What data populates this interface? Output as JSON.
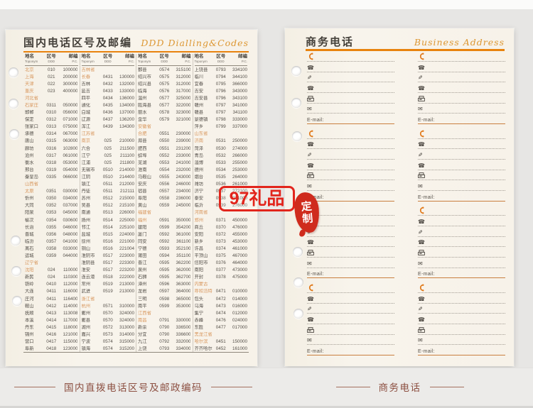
{
  "left_page": {
    "title": "国内电话区号及邮编",
    "title_en": "DDD Dialling&Codes",
    "header": {
      "name_cn": "地名",
      "name_en": "Toponym",
      "code_cn": "区号",
      "code_en": "DDD",
      "zip_cn": "邮编",
      "zip_en": "P.C."
    },
    "columns": [
      [
        [
          "北京",
          "010",
          "100000",
          1
        ],
        [
          "上海",
          "021",
          "200000",
          1
        ],
        [
          "天津",
          "022",
          "300000",
          1
        ],
        [
          "重庆",
          "023",
          "400000",
          1
        ],
        [
          "河北省",
          "",
          "",
          1
        ],
        [
          "石家庄",
          "0311",
          "050000",
          1
        ],
        [
          "邯郸",
          "0310",
          "056000",
          0
        ],
        [
          "保定",
          "0312",
          "071000",
          0
        ],
        [
          "张家口",
          "0313",
          "075000",
          0
        ],
        [
          "承德",
          "0314",
          "067000",
          0
        ],
        [
          "唐山",
          "0315",
          "063000",
          0
        ],
        [
          "廊坊",
          "0316",
          "102800",
          0
        ],
        [
          "沧州",
          "0317",
          "061000",
          0
        ],
        [
          "衡水",
          "0318",
          "053000",
          0
        ],
        [
          "邢台",
          "0319",
          "054000",
          0
        ],
        [
          "秦皇岛",
          "0335",
          "066000",
          0
        ],
        [
          "山西省",
          "",
          "",
          1
        ],
        [
          "太原",
          "0351",
          "030000",
          1
        ],
        [
          "忻州",
          "0350",
          "034000",
          0
        ],
        [
          "大同",
          "0352",
          "037000",
          0
        ],
        [
          "阳泉",
          "0353",
          "045000",
          0
        ],
        [
          "榆次",
          "0354",
          "030600",
          0
        ],
        [
          "长治",
          "0355",
          "046000",
          0
        ],
        [
          "晋城",
          "0356",
          "048000",
          0
        ],
        [
          "临汾",
          "0357",
          "041000",
          0
        ],
        [
          "离石",
          "0358",
          "033000",
          0
        ],
        [
          "运城",
          "0359",
          "044000",
          0
        ],
        [
          "辽宁省",
          "",
          "",
          1
        ],
        [
          "沈阳",
          "024",
          "110000",
          1
        ],
        [
          "新民",
          "024",
          "110300",
          0
        ],
        [
          "铁岭",
          "0410",
          "112000",
          0
        ],
        [
          "大连",
          "0411",
          "116000",
          0
        ],
        [
          "庄河",
          "0411",
          "116400",
          0
        ],
        [
          "鞍山",
          "0412",
          "114000",
          0
        ],
        [
          "抚顺",
          "0413",
          "113008",
          0
        ],
        [
          "本溪",
          "0414",
          "117000",
          0
        ],
        [
          "丹东",
          "0415",
          "118000",
          0
        ],
        [
          "锦州",
          "0416",
          "121000",
          0
        ],
        [
          "营口",
          "0417",
          "115000",
          0
        ],
        [
          "阜新",
          "0418",
          "123000",
          0
        ]
      ],
      [
        [
          "吉林省",
          "",
          "",
          1
        ],
        [
          "长春",
          "0431",
          "130000",
          1
        ],
        [
          "吉林",
          "0432",
          "132000",
          0
        ],
        [
          "延吉",
          "0433",
          "133000",
          0
        ],
        [
          "四平",
          "0434",
          "136000",
          0
        ],
        [
          "通化",
          "0435",
          "134000",
          0
        ],
        [
          "白城",
          "0436",
          "137000",
          0
        ],
        [
          "辽源",
          "0437",
          "136200",
          0
        ],
        [
          "浑江",
          "0439",
          "134300",
          0
        ],
        [
          "江苏省",
          "",
          "",
          1
        ],
        [
          "南京",
          "025",
          "210000",
          1
        ],
        [
          "六合",
          "025",
          "211500",
          0
        ],
        [
          "江宁",
          "025",
          "211100",
          0
        ],
        [
          "江浦",
          "025",
          "211800",
          0
        ],
        [
          "无锡市",
          "0510",
          "214000",
          0
        ],
        [
          "江阴",
          "0510",
          "214400",
          0
        ],
        [
          "镇江",
          "0511",
          "212000",
          0
        ],
        [
          "丹徒",
          "0511",
          "212111",
          0
        ],
        [
          "苏州",
          "0512",
          "215000",
          0
        ],
        [
          "吴县",
          "0512",
          "215100",
          0
        ],
        [
          "南通",
          "0513",
          "226000",
          0
        ],
        [
          "扬州",
          "0514",
          "225000",
          0
        ],
        [
          "邗江",
          "0514",
          "225100",
          0
        ],
        [
          "盐城",
          "0515",
          "224000",
          0
        ],
        [
          "徐州",
          "0516",
          "221000",
          0
        ],
        [
          "铜山",
          "0516",
          "221004",
          0
        ],
        [
          "淮阴市",
          "0517",
          "223000",
          0
        ],
        [
          "淮阴县",
          "0517",
          "223300",
          0
        ],
        [
          "淮安",
          "0517",
          "223200",
          0
        ],
        [
          "连云港",
          "0518",
          "222000",
          0
        ],
        [
          "常州",
          "0519",
          "213000",
          0
        ],
        [
          "武进",
          "0519",
          "213000",
          0
        ],
        [
          "浙江省",
          "",
          "",
          1
        ],
        [
          "杭州",
          "0571",
          "310000",
          1
        ],
        [
          "衢州",
          "0570",
          "324000",
          0
        ],
        [
          "衢县",
          "0570",
          "324000",
          0
        ],
        [
          "湖州",
          "0572",
          "313000",
          0
        ],
        [
          "嘉兴",
          "0573",
          "314000",
          0
        ],
        [
          "宁波",
          "0574",
          "315000",
          0
        ],
        [
          "镇海",
          "0574",
          "315200",
          0
        ]
      ],
      [
        [
          "鄞县",
          "0574",
          "315100",
          0
        ],
        [
          "绍兴市",
          "0575",
          "312000",
          0
        ],
        [
          "绍兴县",
          "0575",
          "312000",
          0
        ],
        [
          "临海",
          "0576",
          "317000",
          0
        ],
        [
          "温州",
          "0577",
          "325000",
          0
        ],
        [
          "瓯海县",
          "0577",
          "322000",
          0
        ],
        [
          "丽水",
          "0578",
          "323000",
          0
        ],
        [
          "金华",
          "0579",
          "321000",
          0
        ],
        [
          "安徽省",
          "",
          "",
          1
        ],
        [
          "合肥",
          "0551",
          "230000",
          1
        ],
        [
          "滁县",
          "0550",
          "239000",
          0
        ],
        [
          "肥西",
          "0551",
          "231200",
          0
        ],
        [
          "蚌埠",
          "0552",
          "233000",
          0
        ],
        [
          "芜湖",
          "0553",
          "241000",
          0
        ],
        [
          "淮南",
          "0554",
          "232000",
          0
        ],
        [
          "马鞍山",
          "0555",
          "243000",
          0
        ],
        [
          "安庆",
          "0556",
          "246000",
          0
        ],
        [
          "宿县",
          "0557",
          "234000",
          0
        ],
        [
          "阜阳",
          "0558",
          "236000",
          0
        ],
        [
          "黄山",
          "0559",
          "245000",
          0
        ],
        [
          "福建省",
          "",
          "",
          1
        ],
        [
          "福州",
          "0591",
          "350000",
          1
        ],
        [
          "建阳",
          "0599",
          "354200",
          0
        ],
        [
          "厦门",
          "0592",
          "361000",
          0
        ],
        [
          "同安",
          "0592",
          "361100",
          0
        ],
        [
          "宁德",
          "0593",
          "352100",
          0
        ],
        [
          "莆田",
          "0594",
          "351100",
          0
        ],
        [
          "晋江",
          "0595",
          "362200",
          0
        ],
        [
          "泉州",
          "0595",
          "362000",
          0
        ],
        [
          "石狮",
          "0595",
          "362700",
          0
        ],
        [
          "漳州",
          "0596",
          "363000",
          0
        ],
        [
          "龙岩",
          "0597",
          "364000",
          0
        ],
        [
          "三明",
          "0598",
          "365000",
          0
        ],
        [
          "南平",
          "0599",
          "353000",
          0
        ],
        [
          "江西省",
          "",
          "",
          1
        ],
        [
          "南昌",
          "0791",
          "330000",
          1
        ],
        [
          "新余",
          "0790",
          "336500",
          0
        ],
        [
          "分宜",
          "0790",
          "336600",
          0
        ],
        [
          "九江",
          "0792",
          "332000",
          0
        ],
        [
          "上饶",
          "0793",
          "334000",
          0
        ]
      ],
      [
        [
          "上饶县",
          "0793",
          "334100",
          0
        ],
        [
          "临川",
          "0794",
          "344100",
          0
        ],
        [
          "宜春",
          "0795",
          "366000",
          0
        ],
        [
          "吉安",
          "0796",
          "343000",
          0
        ],
        [
          "吉安县",
          "0796",
          "343100",
          0
        ],
        [
          "赣州",
          "0797",
          "341000",
          0
        ],
        [
          "赣县",
          "0797",
          "341100",
          0
        ],
        [
          "景德镇",
          "0798",
          "333000",
          0
        ],
        [
          "萍乡",
          "0799",
          "337000",
          0
        ],
        [
          "山东省",
          "",
          "",
          1
        ],
        [
          "济南",
          "0531",
          "250000",
          1
        ],
        [
          "菏泽",
          "0530",
          "274000",
          0
        ],
        [
          "青岛",
          "0532",
          "266000",
          0
        ],
        [
          "淄博",
          "0533",
          "255000",
          0
        ],
        [
          "德州",
          "0534",
          "253000",
          0
        ],
        [
          "烟台",
          "0535",
          "264000",
          0
        ],
        [
          "潍坊",
          "0536",
          "261000",
          0
        ],
        [
          "济宁",
          "0537",
          "272100",
          0
        ],
        [
          "泰安",
          "0538",
          "271000",
          0
        ],
        [
          "临沂",
          "0539",
          "276000",
          0
        ],
        [
          "河南省",
          "",
          "",
          1
        ],
        [
          "郑州",
          "0371",
          "450000",
          1
        ],
        [
          "商丘",
          "0370",
          "476000",
          0
        ],
        [
          "安阳",
          "0372",
          "455000",
          0
        ],
        [
          "新乡",
          "0373",
          "453000",
          0
        ],
        [
          "许昌",
          "0374",
          "461000",
          0
        ],
        [
          "平顶山",
          "0375",
          "467000",
          0
        ],
        [
          "信阳市",
          "0376",
          "464000",
          0
        ],
        [
          "南阳",
          "0377",
          "473000",
          0
        ],
        [
          "开封",
          "0378",
          "475000",
          0
        ],
        [
          "内蒙古",
          "",
          "",
          1
        ],
        [
          "呼和浩特",
          "0471",
          "010000",
          1
        ],
        [
          "包头",
          "0472",
          "014000",
          0
        ],
        [
          "乌海",
          "0473",
          "016000",
          0
        ],
        [
          "集宁",
          "0474",
          "012000",
          0
        ],
        [
          "赤峰",
          "0476",
          "024000",
          0
        ],
        [
          "东胜",
          "0477",
          "017000",
          0
        ],
        [
          "黑龙江省",
          "",
          "",
          1
        ],
        [
          "哈尔滨",
          "0451",
          "150000",
          1
        ],
        [
          "齐齐哈尔",
          "0452",
          "161000",
          0
        ]
      ]
    ]
  },
  "right_page": {
    "title": "商务电话",
    "title_en": "Business Address",
    "email_label": "E-mail:",
    "columns": 2,
    "blocks_per_column": 4,
    "row_icons": [
      "handset-icon",
      "telephone-icon",
      "pen-icon",
      "telephone-icon",
      "fax-icon",
      "envelope-icon",
      "email-label"
    ]
  },
  "watermark": {
    "text": "97礼品",
    "color": "#e2251c"
  },
  "stamp": {
    "char1": "定",
    "char2": "制",
    "color": "#cf2b1d"
  },
  "captions": {
    "left": "国内直拨电话区号及邮政编码",
    "right": "商务电话"
  },
  "colors": {
    "accent_orange": "#e8830e",
    "script_orange": "#dd9733",
    "highlight_name": "#d8975e",
    "page_cream": "#f7f2e9",
    "backdrop": "#e7e6e4",
    "caption_text": "#8c4f41"
  }
}
